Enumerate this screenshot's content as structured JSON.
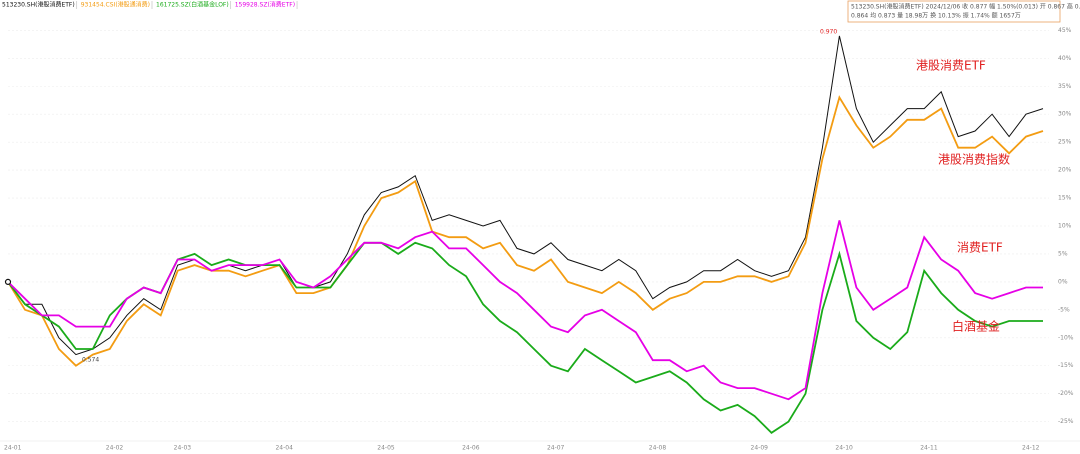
{
  "chart_data": {
    "type": "line",
    "categories": [
      "24-01",
      null,
      null,
      null,
      null,
      null,
      "24-02",
      null,
      null,
      null,
      "24-03",
      null,
      null,
      null,
      null,
      null,
      "24-04",
      null,
      null,
      null,
      null,
      null,
      "24-05",
      null,
      null,
      null,
      null,
      "24-06",
      null,
      null,
      null,
      null,
      "24-07",
      null,
      null,
      null,
      null,
      null,
      "24-08",
      null,
      null,
      null,
      null,
      null,
      "24-09",
      null,
      null,
      null,
      null,
      "24-10",
      null,
      null,
      null,
      null,
      "24-11",
      null,
      null,
      null,
      null,
      null,
      "24-12",
      null
    ],
    "series": [
      {
        "name": "513230.SH(港股消费ETF)",
        "color": "#111111",
        "values": [
          0,
          -4,
          -4,
          -10,
          -13,
          -12,
          -10,
          -6,
          -3,
          -5,
          3,
          4,
          2,
          3,
          2,
          3,
          4,
          -1,
          -1,
          0,
          5,
          12,
          16,
          17,
          19,
          11,
          12,
          11,
          10,
          11,
          6,
          5,
          7,
          4,
          3,
          2,
          4,
          2,
          -3,
          -1,
          0,
          2,
          2,
          4,
          2,
          1,
          2,
          8,
          24,
          44,
          31,
          25,
          28,
          31,
          31,
          34,
          26,
          27,
          30,
          26,
          30,
          31
        ]
      },
      {
        "name": "931454.CSI(港股通消费)",
        "color": "#f39c12",
        "values": [
          0,
          -5,
          -6,
          -12,
          -15,
          -13,
          -12,
          -7,
          -4,
          -6,
          2,
          3,
          2,
          2,
          1,
          2,
          3,
          -2,
          -2,
          -1,
          3,
          10,
          15,
          16,
          18,
          9,
          8,
          8,
          6,
          7,
          3,
          2,
          4,
          0,
          -1,
          -2,
          0,
          -2,
          -5,
          -3,
          -2,
          0,
          0,
          1,
          1,
          0,
          1,
          7,
          22,
          33,
          28,
          24,
          26,
          29,
          29,
          31,
          24,
          24,
          26,
          23,
          26,
          27
        ]
      },
      {
        "name": "161725.SZ(白酒基金LOF)",
        "color": "#1aab1a",
        "values": [
          0,
          -4,
          -6,
          -8,
          -12,
          -12,
          -6,
          -3,
          -1,
          -2,
          4,
          5,
          3,
          4,
          3,
          3,
          3,
          -1,
          -1,
          -1,
          3,
          7,
          7,
          5,
          7,
          6,
          3,
          1,
          -4,
          -7,
          -9,
          -12,
          -15,
          -16,
          -12,
          -14,
          -16,
          -18,
          -17,
          -16,
          -18,
          -21,
          -23,
          -22,
          -24,
          -27,
          -25,
          -20,
          -5,
          5,
          -7,
          -10,
          -12,
          -9,
          2,
          -2,
          -5,
          -7,
          -8,
          -7,
          -7,
          -7
        ]
      },
      {
        "name": "159928.SZ(消费ETF)",
        "color": "#e600e6",
        "values": [
          0,
          -3,
          -6,
          -6,
          -8,
          -8,
          -8,
          -3,
          -1,
          -2,
          4,
          4,
          2,
          3,
          3,
          3,
          4,
          0,
          -1,
          1,
          4,
          7,
          7,
          6,
          8,
          9,
          6,
          6,
          3,
          0,
          -2,
          -5,
          -8,
          -9,
          -6,
          -5,
          -7,
          -9,
          -14,
          -14,
          -16,
          -15,
          -18,
          -19,
          -19,
          -20,
          -21,
          -19,
          -2,
          11,
          -1,
          -5,
          -3,
          -1,
          8,
          4,
          2,
          -2,
          -3,
          -2,
          -1,
          -1
        ]
      }
    ],
    "ylim": [
      -29,
      49
    ],
    "yticks": [
      {
        "value": -25,
        "label": "-25%"
      },
      {
        "value": -20,
        "label": "-20%"
      },
      {
        "value": -15,
        "label": "-15%"
      },
      {
        "value": -10,
        "label": "-10%"
      },
      {
        "value": -5,
        "label": "-5%"
      },
      {
        "value": 0,
        "label": "0%"
      },
      {
        "value": 5,
        "label": "5%"
      },
      {
        "value": 10,
        "label": "10%"
      },
      {
        "value": 15,
        "label": "15%"
      },
      {
        "value": 20,
        "label": "20%"
      },
      {
        "value": 25,
        "label": "25%"
      },
      {
        "value": 30,
        "label": "30%"
      },
      {
        "value": 35,
        "label": "35%"
      },
      {
        "value": 40,
        "label": "40%"
      },
      {
        "value": 45,
        "label": "45%"
      }
    ],
    "grid": true,
    "annotations": [
      "港股消费ETF",
      "港股消费指数",
      "消费ETF",
      "白酒基金",
      "0.970",
      "0.574"
    ],
    "info_box": [
      "513230.SH(港股消费ETF)  2024/12/06 收 0.877 幅 1.50%(0.013) 开 0.867 高 0.879 低",
      "0.864 均 0.873 量 18.98万 换 10.13% 振 1.74% 额 1657万"
    ]
  }
}
